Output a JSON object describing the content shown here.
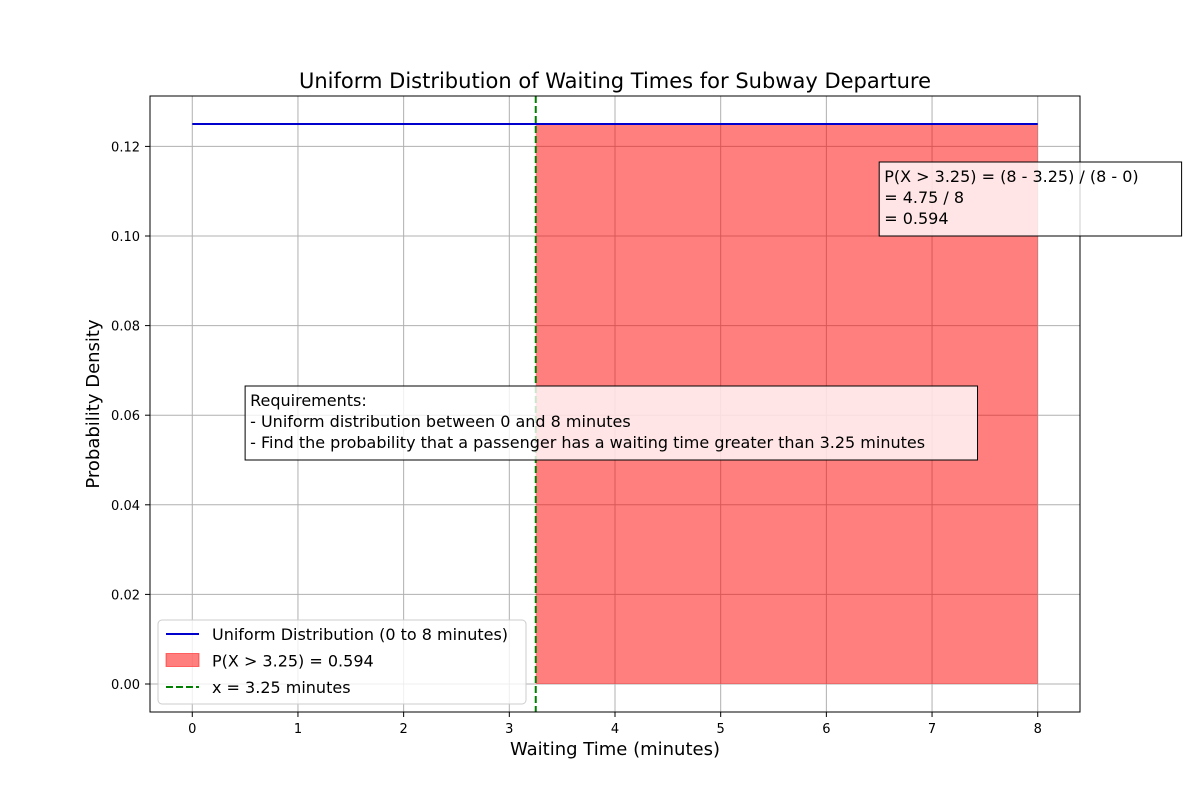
{
  "chart_data": {
    "type": "line",
    "title": "Uniform Distribution of Waiting Times for Subway Departure",
    "xlabel": "Waiting Time (minutes)",
    "ylabel": "Probability Density",
    "xlim": [
      -0.4,
      8.4
    ],
    "ylim": [
      -0.00625,
      0.13125
    ],
    "xticks": [
      0,
      1,
      2,
      3,
      4,
      5,
      6,
      7,
      8
    ],
    "xtick_labels": [
      "0",
      "1",
      "2",
      "3",
      "4",
      "5",
      "6",
      "7",
      "8"
    ],
    "yticks": [
      0.0,
      0.02,
      0.04,
      0.06,
      0.08,
      0.1,
      0.12
    ],
    "ytick_labels": [
      "0.00",
      "0.02",
      "0.04",
      "0.06",
      "0.08",
      "0.10",
      "0.12"
    ],
    "grid": true,
    "legend_position": "lower-left",
    "series": [
      {
        "name": "Uniform Distribution (0 to 8 minutes)",
        "kind": "line",
        "color": "#0000cc",
        "x": [
          0,
          8
        ],
        "y": [
          0.125,
          0.125
        ]
      },
      {
        "name": "P(X > 3.25) = 0.594",
        "kind": "area",
        "color": "#ff0000",
        "opacity": 0.5,
        "x": [
          3.25,
          8
        ],
        "y": [
          0.125,
          0.125
        ]
      },
      {
        "name": "x = 3.25 minutes",
        "kind": "vline",
        "color": "#008000",
        "dashed": true,
        "x": 3.25
      }
    ],
    "annotations": [
      {
        "id": "calc",
        "anchor": [
          6.5,
          0.1
        ],
        "lines": [
          "P(X > 3.25) = (8 - 3.25) / (8 - 0)",
          "= 4.75 / 8",
          "= 0.594"
        ]
      },
      {
        "id": "req",
        "anchor": [
          0.5,
          0.05
        ],
        "lines": [
          "Requirements:",
          "- Uniform distribution between 0 and 8 minutes",
          "- Find the probability that a passenger has a waiting time greater than 3.25 minutes"
        ]
      }
    ]
  }
}
